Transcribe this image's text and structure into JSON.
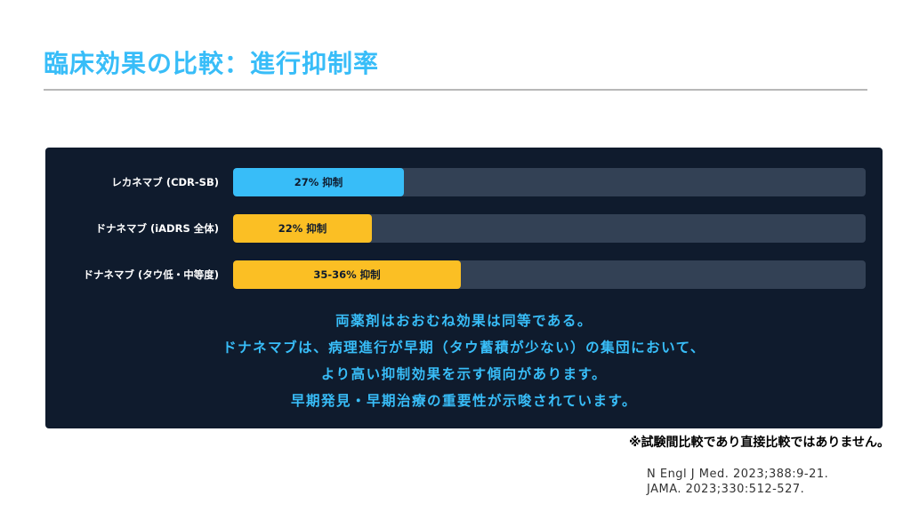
{
  "title": "臨床効果の比較：進行抑制率",
  "chart_data": {
    "type": "bar",
    "orientation": "horizontal",
    "xlim": [
      0,
      100
    ],
    "categories": [
      "レカネマブ (CDR-SB)",
      "ドナネマブ (iADRS 全体)",
      "ドナネマブ (タウ低・中等度)"
    ],
    "values": [
      27,
      22,
      36
    ],
    "value_labels": [
      "27% 抑制",
      "22% 抑制",
      "35-36% 抑制"
    ],
    "colors": [
      "#38bdf8",
      "#fbbf24",
      "#fbbf24"
    ]
  },
  "summary_lines": [
    "両薬剤はおおむね効果は同等である。",
    "ドナネマブは、病理進行が早期（タウ蓄積が少ない）の集団において、",
    "より高い抑制効果を示す傾向があります。",
    "早期発見・早期治療の重要性が示唆されています。"
  ],
  "note": "※試験間比較であり直接比較ではありません。",
  "references": [
    "N Engl J Med. 2023;388:9-21.",
    "JAMA. 2023;330:512-527."
  ],
  "colors": {
    "accent": "#38bdf8",
    "panel": "#0f1b2d",
    "track": "#334155",
    "donanemab": "#fbbf24"
  }
}
